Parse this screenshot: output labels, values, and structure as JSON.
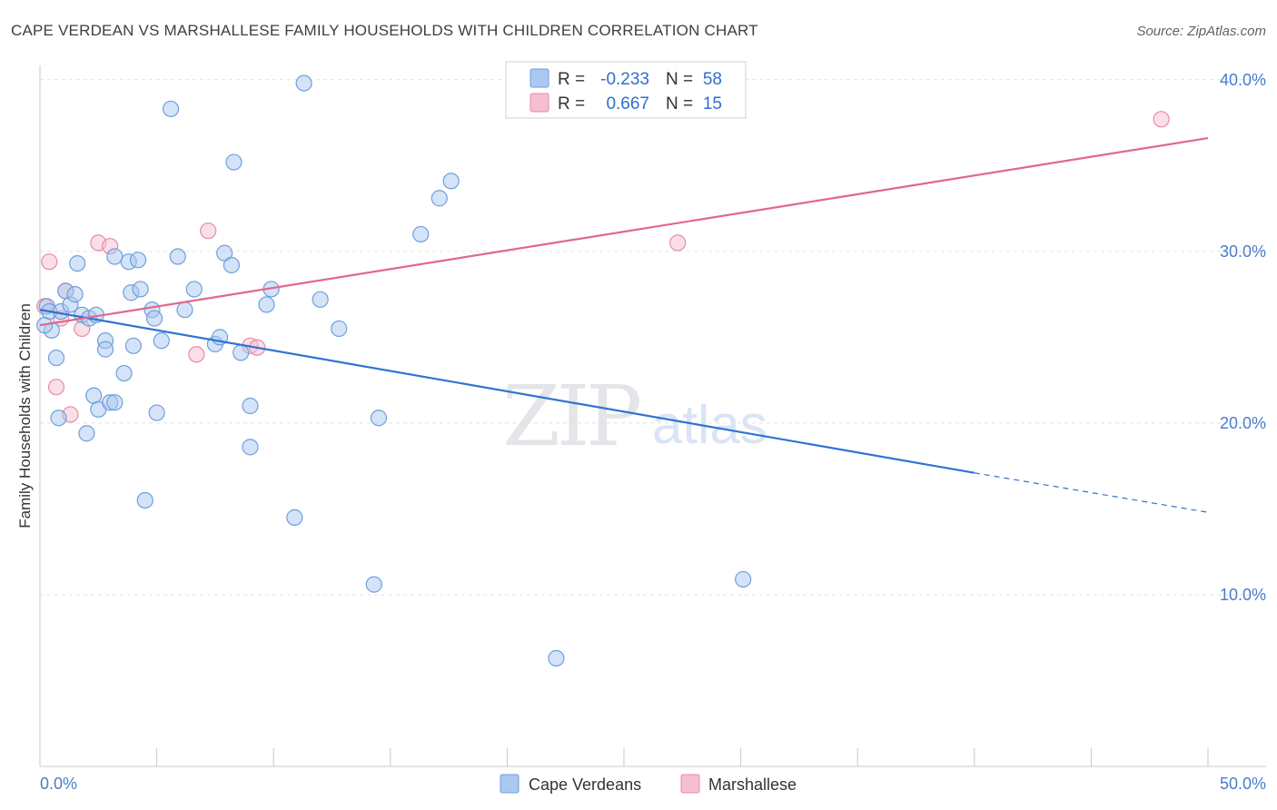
{
  "header": {
    "title": "CAPE VERDEAN VS MARSHALLESE FAMILY HOUSEHOLDS WITH CHILDREN CORRELATION CHART",
    "source": "Source: ZipAtlas.com"
  },
  "watermark": {
    "zip": "ZIP",
    "atlas": "atlas"
  },
  "colors": {
    "blue_fill": "#aac8f0",
    "blue_stroke": "#6f9fdc",
    "blue_line": "#2f74d0",
    "pink_fill": "#f6bfcf",
    "pink_stroke": "#e88aa8",
    "pink_line": "#e06890",
    "grid": "#dfe1e5",
    "axis": "#c8c8c8"
  },
  "legend": {
    "rows": [
      {
        "r_label": "R =",
        "r_value": "-0.233",
        "n_label": "N =",
        "n_value": "58"
      },
      {
        "r_label": "R =",
        "r_value": "0.667",
        "n_label": "N =",
        "n_value": "15"
      }
    ]
  },
  "chart_data": {
    "type": "scatter",
    "title": "CAPE VERDEAN VS MARSHALLESE FAMILY HOUSEHOLDS WITH CHILDREN CORRELATION CHART",
    "xlabel": "",
    "ylabel": "Family Households with Children",
    "xlim": [
      0,
      50
    ],
    "ylim": [
      0,
      42
    ],
    "x_tick_labels": [
      "0.0%",
      "50.0%"
    ],
    "y_ticks": [
      10,
      20,
      30,
      40
    ],
    "y_tick_labels": [
      "10.0%",
      "20.0%",
      "30.0%",
      "40.0%"
    ],
    "grid": true,
    "legend_position": "bottom",
    "series": [
      {
        "name": "Cape Verdeans",
        "r": -0.233,
        "n": 58,
        "trend": {
          "x_start": 0,
          "y_start": 26.6,
          "x_end": 40,
          "y_end": 17.1,
          "dashed_to_x": 50,
          "dashed_to_y": 14.8
        },
        "points": [
          [
            0.3,
            26.8
          ],
          [
            0.4,
            26.5
          ],
          [
            0.5,
            25.4
          ],
          [
            0.7,
            23.8
          ],
          [
            0.8,
            20.3
          ],
          [
            0.9,
            26.5
          ],
          [
            1.1,
            27.7
          ],
          [
            1.3,
            26.9
          ],
          [
            1.5,
            27.5
          ],
          [
            1.6,
            29.3
          ],
          [
            1.8,
            26.3
          ],
          [
            2.0,
            19.4
          ],
          [
            2.1,
            26.1
          ],
          [
            2.3,
            21.6
          ],
          [
            2.4,
            26.3
          ],
          [
            2.5,
            20.8
          ],
          [
            2.8,
            24.8
          ],
          [
            2.8,
            24.3
          ],
          [
            3.0,
            21.2
          ],
          [
            3.2,
            21.2
          ],
          [
            3.2,
            29.7
          ],
          [
            3.6,
            22.9
          ],
          [
            3.8,
            29.4
          ],
          [
            3.9,
            27.6
          ],
          [
            4.0,
            24.5
          ],
          [
            4.2,
            29.5
          ],
          [
            4.3,
            27.8
          ],
          [
            4.5,
            15.5
          ],
          [
            4.8,
            26.6
          ],
          [
            4.9,
            26.1
          ],
          [
            5.0,
            20.6
          ],
          [
            5.2,
            24.8
          ],
          [
            5.6,
            38.3
          ],
          [
            5.9,
            29.7
          ],
          [
            6.2,
            26.6
          ],
          [
            6.6,
            27.8
          ],
          [
            7.5,
            24.6
          ],
          [
            7.7,
            25.0
          ],
          [
            7.9,
            29.9
          ],
          [
            8.2,
            29.2
          ],
          [
            8.3,
            35.2
          ],
          [
            8.6,
            24.1
          ],
          [
            9.0,
            18.6
          ],
          [
            9.0,
            21.0
          ],
          [
            9.7,
            26.9
          ],
          [
            9.9,
            27.8
          ],
          [
            10.9,
            14.5
          ],
          [
            11.3,
            39.8
          ],
          [
            12.0,
            27.2
          ],
          [
            12.8,
            25.5
          ],
          [
            14.3,
            10.6
          ],
          [
            14.5,
            20.3
          ],
          [
            16.3,
            31.0
          ],
          [
            17.1,
            33.1
          ],
          [
            17.6,
            34.1
          ],
          [
            22.1,
            6.3
          ],
          [
            30.1,
            10.9
          ],
          [
            0.2,
            25.7
          ]
        ]
      },
      {
        "name": "Marshallese",
        "r": 0.667,
        "n": 15,
        "trend": {
          "x_start": 0,
          "y_start": 25.7,
          "x_end": 50,
          "y_end": 36.6
        },
        "points": [
          [
            0.2,
            26.8
          ],
          [
            0.4,
            29.4
          ],
          [
            0.7,
            22.1
          ],
          [
            0.9,
            26.1
          ],
          [
            1.1,
            27.7
          ],
          [
            1.3,
            20.5
          ],
          [
            1.8,
            25.5
          ],
          [
            2.5,
            30.5
          ],
          [
            3.0,
            30.3
          ],
          [
            6.7,
            24.0
          ],
          [
            7.2,
            31.2
          ],
          [
            9.0,
            24.5
          ],
          [
            9.3,
            24.4
          ],
          [
            27.3,
            30.5
          ],
          [
            48.0,
            37.7
          ]
        ]
      }
    ]
  }
}
